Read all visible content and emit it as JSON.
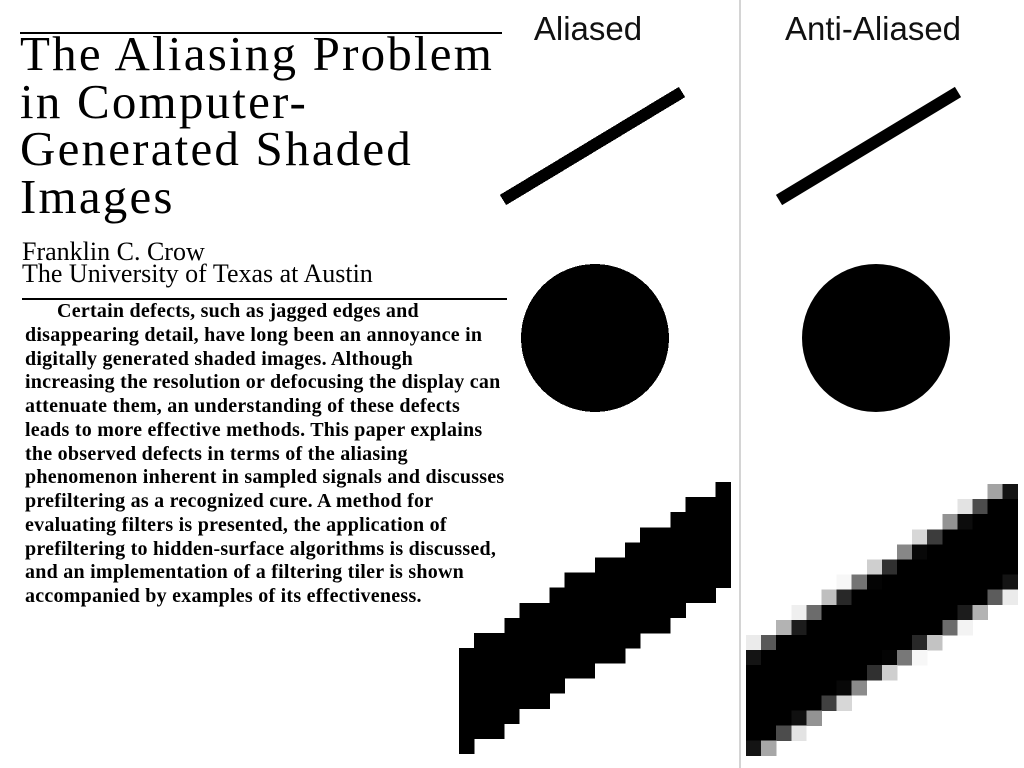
{
  "paper": {
    "title_lines": [
      "The Aliasing Problem",
      "in Computer-",
      "Generated Shaded",
      "Images"
    ],
    "author": "Franklin C. Crow",
    "affiliation": "The University of Texas at Austin",
    "abstract_lines": [
      "Certain defects, such as jagged edges and",
      "disappearing detail, have long been an annoyance in",
      "digitally generated shaded images. Although",
      "increasing the resolution or defocusing the display can",
      "attenuate them, an understanding of these defects",
      "leads to more effective methods. This paper explains",
      "the observed defects in terms of the aliasing",
      "phenomenon inherent in sampled signals and discusses",
      "prefiltering as a recognized cure. A method for",
      "evaluating filters is presented, the application of",
      "prefiltering to hidden-surface algorithms is discussed,",
      "and an implementation of a filtering tiler is shown",
      "accompanied by examples of its effectiveness."
    ]
  },
  "figure": {
    "aliased_label": "Aliased",
    "anti_aliased_label": "Anti-Aliased"
  },
  "colors": {
    "ink": "#000000",
    "background": "#ffffff",
    "divider": "#d4d4d4"
  }
}
